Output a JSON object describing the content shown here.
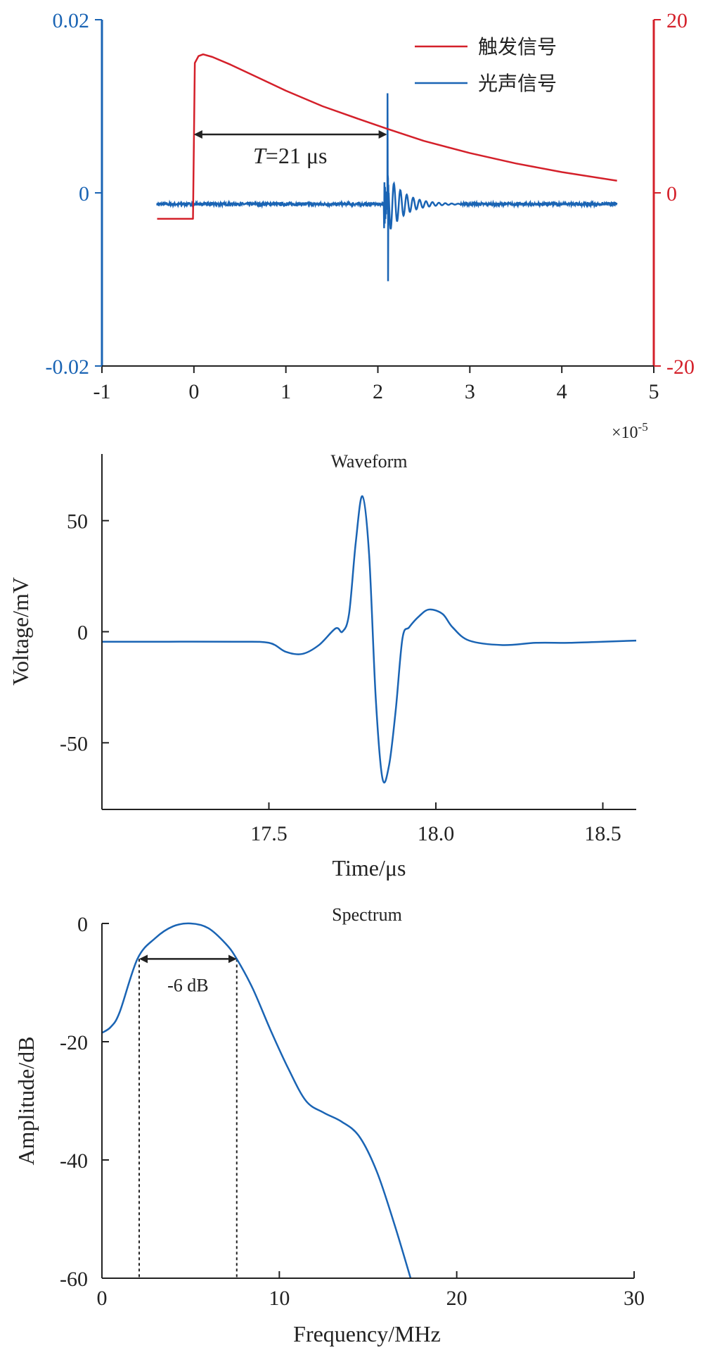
{
  "chart_data": [
    {
      "type": "line",
      "id": "trigger",
      "xlim": [
        -1,
        5
      ],
      "x_ticks": [
        "-1",
        "0",
        "1",
        "2",
        "3",
        "4",
        "5"
      ],
      "x_multiplier": "×10",
      "x_multiplier_exp": "-5",
      "ylim_left": [
        -0.02,
        0.02
      ],
      "y_left_ticks": [
        "0.02",
        "0",
        "-0.02"
      ],
      "ylim_right": [
        -20,
        20
      ],
      "y_right_ticks": [
        "20",
        "0",
        "-20"
      ],
      "legend_position": "top-right",
      "annotation": {
        "italic": "T",
        "text": "=21 μs",
        "from_x": 0,
        "to_x": 2.1
      },
      "series": [
        {
          "name": "触发信号",
          "color": "#d4202a",
          "axis": "right",
          "x": [
            -0.4,
            -0.01,
            0.0,
            0.01,
            0.05,
            0.1,
            0.2,
            0.4,
            0.7,
            1.0,
            1.4,
            1.8,
            2.1,
            2.5,
            3.0,
            3.5,
            4.0,
            4.6
          ],
          "y": [
            -3.0,
            -3.0,
            6.0,
            15.0,
            15.8,
            16.0,
            15.7,
            14.8,
            13.3,
            11.8,
            10.0,
            8.5,
            7.4,
            6.0,
            4.6,
            3.4,
            2.4,
            1.4
          ]
        },
        {
          "name": "光声信号",
          "color": "#1a64b4",
          "axis": "left",
          "baseline": -0.0013,
          "pulse_at": 2.105,
          "pulse_peak": 0.0115,
          "pulse_trough": -0.0102,
          "ringing_end": 2.9,
          "x_range": [
            -0.4,
            4.6
          ]
        }
      ]
    },
    {
      "type": "line",
      "id": "waveform",
      "title": "Waveform",
      "xlabel": "Time/μs",
      "ylabel": "Voltage/mV",
      "xlim": [
        17.0,
        18.6
      ],
      "ylim": [
        -80,
        80
      ],
      "x_ticks": [
        "17.5",
        "18.0",
        "18.5"
      ],
      "y_ticks": [
        "50",
        "0",
        "-50"
      ],
      "series": [
        {
          "color": "#1a64b4",
          "x": [
            17.0,
            17.2,
            17.4,
            17.5,
            17.55,
            17.6,
            17.65,
            17.7,
            17.72,
            17.74,
            17.76,
            17.78,
            17.8,
            17.82,
            17.84,
            17.86,
            17.88,
            17.9,
            17.92,
            17.95,
            17.98,
            18.02,
            18.05,
            18.1,
            18.2,
            18.3,
            18.4,
            18.5,
            18.6
          ],
          "y": [
            -4.5,
            -4.5,
            -4.5,
            -5.0,
            -9.0,
            -10.0,
            -6.0,
            1.5,
            0.0,
            8.0,
            40.0,
            61.0,
            35.0,
            -30.0,
            -66.0,
            -60.0,
            -35.0,
            -3.0,
            2.0,
            7.0,
            10.0,
            8.0,
            2.0,
            -4.0,
            -6.0,
            -5.0,
            -5.0,
            -4.5,
            -4.0
          ]
        }
      ]
    },
    {
      "type": "line",
      "id": "spectrum",
      "title": "Spectrum",
      "xlabel": "Frequency/MHz",
      "ylabel": "Amplitude/dB",
      "xlim": [
        0,
        30
      ],
      "ylim": [
        -60,
        0
      ],
      "x_ticks": [
        "0",
        "10",
        "20",
        "30"
      ],
      "y_ticks": [
        "0",
        "-20",
        "-40",
        "-60"
      ],
      "annotation": {
        "text": "-6 dB",
        "from_x": 2.1,
        "to_x": 7.6,
        "level": -6
      },
      "series": [
        {
          "color": "#1a64b4",
          "x": [
            0,
            0.5,
            1.0,
            2.0,
            3.0,
            4.0,
            5.0,
            6.0,
            7.0,
            7.6,
            8.5,
            9.5,
            10.5,
            11.5,
            12.5,
            13.5,
            14.5,
            15.5,
            16.5,
            17.4
          ],
          "y": [
            -18.5,
            -17.5,
            -15.0,
            -6.0,
            -2.5,
            -0.5,
            0.0,
            -0.8,
            -3.5,
            -6.0,
            -11.0,
            -18.0,
            -24.5,
            -30.0,
            -32.0,
            -33.5,
            -36.0,
            -42.0,
            -51.0,
            -60.0
          ]
        }
      ]
    }
  ]
}
